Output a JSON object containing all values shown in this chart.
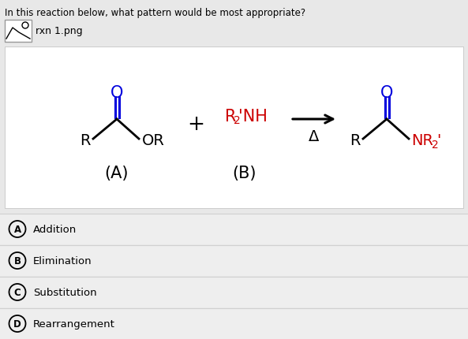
{
  "question": "In this reaction below, what pattern would be most appropriate?",
  "image_label": "rxn 1.png",
  "bg_color": "#e8e8e8",
  "white_box_bg": "#ffffff",
  "answer_bg": "#eeeeee",
  "choices": [
    "Addition",
    "Elimination",
    "Substitution",
    "Rearrangement"
  ],
  "choice_letters": [
    "A",
    "B",
    "C",
    "D"
  ],
  "black": "#000000",
  "red": "#cc0000",
  "blue": "#0000dd",
  "gray": "#999999",
  "line_color": "#cccccc"
}
